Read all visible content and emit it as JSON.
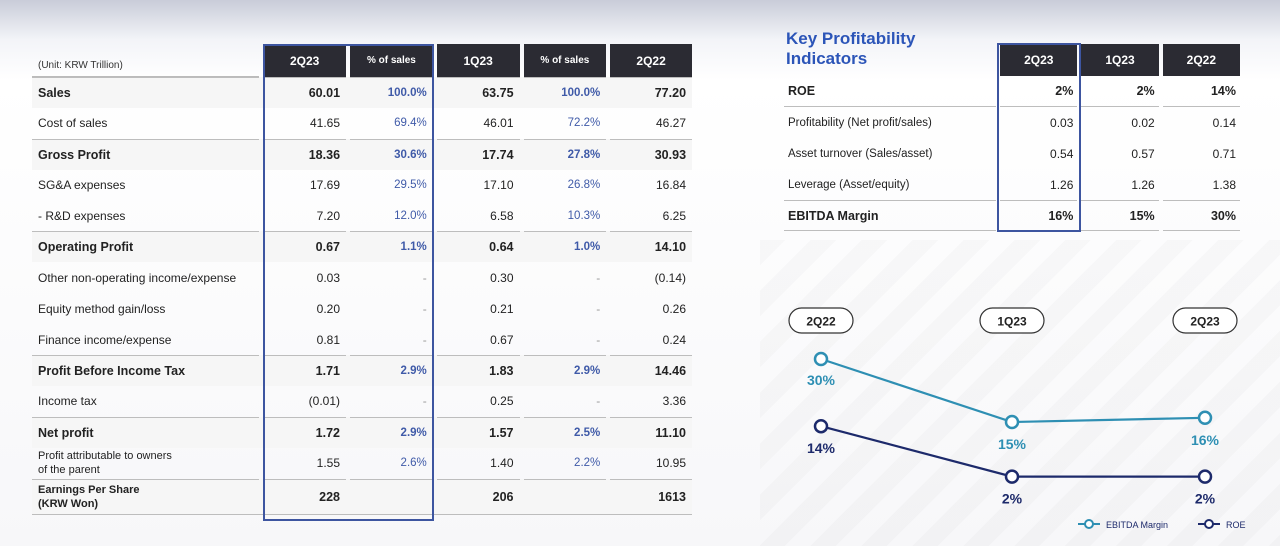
{
  "financials": {
    "unit": "(Unit: KRW Trillion)",
    "columns": [
      "2Q23",
      "% of sales",
      "1Q23",
      "% of sales",
      "2Q22"
    ],
    "rows": [
      {
        "label": "Sales",
        "bold": true,
        "values": [
          "60.01",
          "100.0%",
          "63.75",
          "100.0%",
          "77.20"
        ]
      },
      {
        "label": "Cost of sales",
        "bold": false,
        "values": [
          "41.65",
          "69.4%",
          "46.01",
          "72.2%",
          "46.27"
        ]
      },
      {
        "label": "Gross Profit",
        "bold": true,
        "values": [
          "18.36",
          "30.6%",
          "17.74",
          "27.8%",
          "30.93"
        ]
      },
      {
        "label": "SG&A expenses",
        "bold": false,
        "values": [
          "17.69",
          "29.5%",
          "17.10",
          "26.8%",
          "16.84"
        ]
      },
      {
        "label": " - R&D expenses",
        "bold": false,
        "values": [
          "7.20",
          "12.0%",
          "6.58",
          "10.3%",
          "6.25"
        ]
      },
      {
        "label": "Operating Profit",
        "bold": true,
        "values": [
          "0.67",
          "1.1%",
          "0.64",
          "1.0%",
          "14.10"
        ]
      },
      {
        "label": "Other non-operating income/expense",
        "bold": false,
        "values": [
          "0.03",
          "-",
          "0.30",
          "-",
          "(0.14)"
        ]
      },
      {
        "label": "Equity method gain/loss",
        "bold": false,
        "values": [
          "0.20",
          "-",
          "0.21",
          "-",
          "0.26"
        ]
      },
      {
        "label": "Finance income/expense",
        "bold": false,
        "values": [
          "0.81",
          "-",
          "0.67",
          "-",
          "0.24"
        ]
      },
      {
        "label": "Profit Before Income Tax",
        "bold": true,
        "values": [
          "1.71",
          "2.9%",
          "1.83",
          "2.9%",
          "14.46"
        ]
      },
      {
        "label": "Income tax",
        "bold": false,
        "values": [
          "(0.01)",
          "-",
          "0.25",
          "-",
          "3.36"
        ]
      },
      {
        "label": "Net profit",
        "bold": true,
        "values": [
          "1.72",
          "2.9%",
          "1.57",
          "2.5%",
          "11.10"
        ]
      },
      {
        "label": "Profit attributable to owners of the parent",
        "label_line1": "Profit attributable to owners",
        "label_line2": "of the parent",
        "bold": false,
        "values": [
          "1.55",
          "2.6%",
          "1.40",
          "2.2%",
          "10.95"
        ]
      }
    ],
    "eps": {
      "label_line1": "Earnings Per Share",
      "label_line2": "(KRW Won)",
      "values": [
        "228",
        "",
        "206",
        "",
        "1613"
      ]
    }
  },
  "kpi": {
    "title_line1": "Key Profitability",
    "title_line2": "Indicators",
    "columns": [
      "2Q23",
      "1Q23",
      "2Q22"
    ],
    "rows": [
      {
        "label": "ROE",
        "values": [
          "2%",
          "2%",
          "14%"
        ]
      },
      {
        "label": "Profitability (Net profit/sales)",
        "values": [
          "0.03",
          "0.02",
          "0.14"
        ]
      },
      {
        "label": "Asset turnover (Sales/asset)",
        "values": [
          "0.54",
          "0.57",
          "0.71"
        ]
      },
      {
        "label": "Leverage (Asset/equity)",
        "values": [
          "1.26",
          "1.26",
          "1.38"
        ]
      },
      {
        "label": "EBITDA Margin",
        "values": [
          "16%",
          "15%",
          "30%"
        ]
      }
    ]
  },
  "chart_data": {
    "type": "line",
    "categories": [
      "2Q22",
      "1Q23",
      "2Q23"
    ],
    "series": [
      {
        "name": "EBITDA Margin",
        "values": [
          30,
          15,
          16
        ],
        "labels": [
          "30%",
          "15%",
          "16%"
        ],
        "color": "#2e8fb3"
      },
      {
        "name": "ROE",
        "values": [
          14,
          2,
          2
        ],
        "labels": [
          "14%",
          "2%",
          "2%"
        ],
        "color": "#1d2a6b"
      }
    ],
    "legend": "bottom-right"
  },
  "colors": {
    "accent": "#3d55a0",
    "header_bg": "#2b2b33",
    "title": "#2c55b8"
  }
}
